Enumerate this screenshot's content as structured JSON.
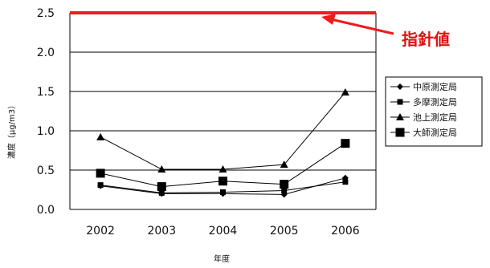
{
  "chart_data": {
    "type": "line",
    "title": "",
    "xlabel": "年度",
    "ylabel": "濃度（μg/m3）",
    "categories": [
      "2002",
      "2003",
      "2004",
      "2005",
      "2006"
    ],
    "ylim": [
      0,
      2.5
    ],
    "y_ticks": [
      "0.0",
      "0.5",
      "1.0",
      "1.5",
      "2.0",
      "2.5"
    ],
    "grid": true,
    "legend_position": "right",
    "series": [
      {
        "name": "中原測定局",
        "marker": "diamond",
        "values": [
          0.3,
          0.2,
          0.2,
          0.19,
          0.4
        ]
      },
      {
        "name": "多摩測定局",
        "marker": "square-small",
        "values": [
          0.31,
          0.21,
          0.22,
          0.24,
          0.35
        ]
      },
      {
        "name": "池上測定局",
        "marker": "triangle",
        "values": [
          0.92,
          0.51,
          0.51,
          0.57,
          1.49
        ]
      },
      {
        "name": "大師測定局",
        "marker": "square-large",
        "values": [
          0.46,
          0.29,
          0.36,
          0.32,
          0.84
        ]
      }
    ],
    "guideline": {
      "value": 2.5,
      "label": "指針値",
      "color": "#ee1c1c"
    }
  }
}
